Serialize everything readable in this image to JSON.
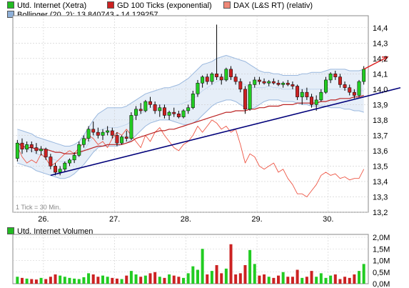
{
  "legend": {
    "price": {
      "label": "Utd. Internet (Xetra)",
      "color": "#22bb22"
    },
    "ma": {
      "label": "GD 100 Ticks (exponential)",
      "color": "#cc2222"
    },
    "dax": {
      "label": "DAX (L&S RT) (relativ)",
      "color": "#ee6655"
    },
    "boll": {
      "label": "Bollinger (20, 2): 13,840743 - 14,129257",
      "color": "#8fb0d8"
    },
    "volume": {
      "label": "Utd. Internet Volumen",
      "color": "#22bb22"
    }
  },
  "tick_note": "1 Tick = 30 Min.",
  "colors": {
    "up": "#22cc22",
    "down": "#cc2222",
    "ma": "#bb2222",
    "dax": "#ee5544",
    "band_fill": "#e6eef8",
    "band_line": "#9ab8de",
    "band_mid": "#bcd2ec",
    "trend": "#00007a",
    "arrow": "#dd2222",
    "grid": "#cccccc",
    "border": "#888888"
  },
  "chart_data": [
    {
      "type": "candlestick",
      "title": "Utd. Internet (Xetra)",
      "x": [
        "26.",
        "27.",
        "28.",
        "29.",
        "30."
      ],
      "y_ticks": [
        "13,2",
        "13,3",
        "13,4",
        "13,5",
        "13,6",
        "13,7",
        "13,8",
        "13,9",
        "14,0",
        "14,1",
        "14,2",
        "14,3",
        "14,4"
      ],
      "ylim": [
        13.2,
        14.45
      ],
      "grid": true,
      "candles": [
        [
          13.55,
          13.67,
          13.53,
          13.65
        ],
        [
          13.65,
          13.68,
          13.58,
          13.61
        ],
        [
          13.61,
          13.66,
          13.59,
          13.64
        ],
        [
          13.64,
          13.66,
          13.59,
          13.62
        ],
        [
          13.62,
          13.65,
          13.58,
          13.6
        ],
        [
          13.6,
          13.63,
          13.57,
          13.61
        ],
        [
          13.61,
          13.62,
          13.54,
          13.56
        ],
        [
          13.56,
          13.58,
          13.48,
          13.5
        ],
        [
          13.5,
          13.52,
          13.44,
          13.46
        ],
        [
          13.46,
          13.5,
          13.44,
          13.48
        ],
        [
          13.48,
          13.53,
          13.46,
          13.52
        ],
        [
          13.52,
          13.55,
          13.5,
          13.54
        ],
        [
          13.54,
          13.59,
          13.52,
          13.57
        ],
        [
          13.57,
          13.66,
          13.56,
          13.64
        ],
        [
          13.64,
          13.7,
          13.62,
          13.68
        ],
        [
          13.68,
          13.76,
          13.66,
          13.74
        ],
        [
          13.74,
          13.79,
          13.7,
          13.72
        ],
        [
          13.72,
          13.75,
          13.68,
          13.7
        ],
        [
          13.7,
          13.74,
          13.67,
          13.72
        ],
        [
          13.72,
          13.76,
          13.7,
          13.73
        ],
        [
          13.73,
          13.75,
          13.68,
          13.7
        ],
        [
          13.7,
          13.72,
          13.63,
          13.65
        ],
        [
          13.65,
          13.7,
          13.64,
          13.69
        ],
        [
          13.69,
          13.73,
          13.66,
          13.68
        ],
        [
          13.68,
          13.85,
          13.67,
          13.83
        ],
        [
          13.83,
          13.89,
          13.8,
          13.87
        ],
        [
          13.87,
          13.91,
          13.84,
          13.86
        ],
        [
          13.86,
          13.93,
          13.85,
          13.92
        ],
        [
          13.92,
          13.95,
          13.88,
          13.9
        ],
        [
          13.9,
          13.92,
          13.84,
          13.86
        ],
        [
          13.86,
          13.9,
          13.82,
          13.88
        ],
        [
          13.88,
          13.9,
          13.81,
          13.83
        ],
        [
          13.83,
          13.86,
          13.8,
          13.85
        ],
        [
          13.85,
          13.88,
          13.82,
          13.84
        ],
        [
          13.84,
          13.86,
          13.81,
          13.82
        ],
        [
          13.82,
          13.87,
          13.81,
          13.86
        ],
        [
          13.86,
          13.9,
          13.84,
          13.88
        ],
        [
          13.88,
          13.99,
          13.87,
          13.97
        ],
        [
          13.97,
          14.06,
          13.95,
          14.04
        ],
        [
          14.04,
          14.09,
          14.01,
          14.08
        ],
        [
          14.08,
          14.1,
          14.03,
          14.05
        ],
        [
          14.05,
          14.11,
          14.03,
          14.1
        ],
        [
          14.1,
          14.42,
          14.06,
          14.08
        ],
        [
          14.08,
          14.1,
          14.03,
          14.06
        ],
        [
          14.06,
          14.14,
          14.05,
          14.13
        ],
        [
          14.13,
          14.15,
          14.06,
          14.08
        ],
        [
          14.08,
          14.1,
          14.03,
          14.05
        ],
        [
          14.05,
          14.07,
          13.98,
          14.0
        ],
        [
          14.0,
          14.02,
          13.84,
          13.87
        ],
        [
          13.87,
          14.05,
          13.86,
          14.03
        ],
        [
          14.03,
          14.08,
          14.01,
          14.06
        ],
        [
          14.06,
          14.08,
          14.03,
          14.05
        ],
        [
          14.05,
          14.07,
          14.03,
          14.04
        ],
        [
          14.04,
          14.06,
          14.02,
          14.05
        ],
        [
          14.05,
          14.07,
          14.03,
          14.04
        ],
        [
          14.04,
          14.06,
          14.02,
          14.03
        ],
        [
          14.03,
          14.05,
          14.01,
          14.04
        ],
        [
          14.04,
          14.06,
          14.02,
          14.03
        ],
        [
          14.03,
          14.05,
          14.0,
          14.02
        ],
        [
          14.02,
          14.03,
          13.93,
          13.95
        ],
        [
          13.95,
          14.0,
          13.9,
          13.98
        ],
        [
          13.98,
          14.01,
          13.93,
          13.95
        ],
        [
          13.95,
          13.97,
          13.88,
          13.9
        ],
        [
          13.9,
          13.96,
          13.86,
          13.93
        ],
        [
          13.93,
          14.0,
          13.92,
          13.98
        ],
        [
          13.98,
          14.08,
          13.97,
          14.06
        ],
        [
          14.06,
          14.11,
          14.04,
          14.1
        ],
        [
          14.1,
          14.12,
          14.06,
          14.08
        ],
        [
          14.08,
          14.1,
          14.01,
          14.03
        ],
        [
          14.03,
          14.05,
          13.99,
          14.01
        ],
        [
          14.01,
          14.03,
          13.96,
          13.98
        ],
        [
          13.98,
          14.0,
          13.94,
          13.96
        ],
        [
          13.96,
          14.06,
          13.95,
          14.05
        ],
        [
          14.05,
          14.15,
          14.03,
          14.13
        ]
      ]
    },
    {
      "type": "line",
      "series": [
        {
          "name": "GD 100 Ticks (exponential)",
          "values": [
            13.65,
            13.63,
            13.62,
            13.62,
            13.61,
            13.61,
            13.61,
            13.6,
            13.59,
            13.59,
            13.58,
            13.58,
            13.58,
            13.59,
            13.6,
            13.61,
            13.62,
            13.63,
            13.63,
            13.64,
            13.64,
            13.64,
            13.64,
            13.65,
            13.66,
            13.68,
            13.69,
            13.7,
            13.71,
            13.72,
            13.73,
            13.73,
            13.74,
            13.74,
            13.75,
            13.76,
            13.77,
            13.78,
            13.79,
            13.8,
            13.81,
            13.82,
            13.83,
            13.84,
            13.85,
            13.85,
            13.86,
            13.86,
            13.86,
            13.87,
            13.87,
            13.88,
            13.88,
            13.89,
            13.89,
            13.89,
            13.9,
            13.9,
            13.9,
            13.91,
            13.91,
            13.91,
            13.91,
            13.91,
            13.92,
            13.92,
            13.93,
            13.93,
            13.94,
            13.94,
            13.94,
            13.95,
            13.95,
            13.96
          ]
        },
        {
          "name": "DAX (L&S RT) (relativ)",
          "values": [
            13.63,
            13.56,
            13.52,
            13.54,
            13.52,
            13.58,
            13.55,
            13.5,
            13.52,
            13.55,
            13.58,
            13.6,
            13.58,
            13.62,
            13.65,
            13.7,
            13.68,
            13.64,
            13.66,
            13.62,
            13.68,
            13.72,
            13.7,
            13.74,
            13.7,
            13.66,
            13.62,
            13.7,
            13.66,
            13.72,
            13.75,
            13.7,
            13.66,
            13.62,
            13.6,
            13.64,
            13.66,
            13.7,
            13.76,
            13.72,
            13.76,
            13.8,
            13.78,
            13.74,
            13.76,
            13.72,
            13.74,
            13.64,
            13.52,
            13.58,
            13.56,
            13.5,
            13.48,
            13.5,
            13.52,
            13.46,
            13.48,
            13.42,
            13.38,
            13.32,
            13.32,
            13.3,
            13.34,
            13.38,
            13.44,
            13.46,
            13.44,
            13.45,
            13.42,
            13.43,
            13.41,
            13.42,
            13.42,
            13.48
          ]
        },
        {
          "name": "Bollinger upper",
          "values": [
            13.74,
            13.73,
            13.72,
            13.71,
            13.69,
            13.68,
            13.67,
            13.66,
            13.65,
            13.64,
            13.63,
            13.63,
            13.64,
            13.66,
            13.7,
            13.75,
            13.8,
            13.84,
            13.86,
            13.88,
            13.88,
            13.88,
            13.88,
            13.89,
            13.91,
            13.93,
            13.95,
            13.97,
            13.98,
            13.99,
            14.0,
            14.01,
            14.01,
            14.02,
            14.03,
            14.05,
            14.07,
            14.1,
            14.13,
            14.16,
            14.17,
            14.18,
            14.2,
            14.21,
            14.22,
            14.21,
            14.2,
            14.19,
            14.18,
            14.16,
            14.14,
            14.12,
            14.11,
            14.11,
            14.1,
            14.1,
            14.09,
            14.09,
            14.09,
            14.09,
            14.1,
            14.1,
            14.11,
            14.11,
            14.11,
            14.12,
            14.13,
            14.13,
            14.13,
            14.13,
            14.12,
            14.12,
            14.12,
            14.13
          ]
        },
        {
          "name": "Bollinger lower",
          "values": [
            13.52,
            13.51,
            13.5,
            13.49,
            13.47,
            13.46,
            13.45,
            13.44,
            13.43,
            13.42,
            13.42,
            13.43,
            13.45,
            13.48,
            13.51,
            13.55,
            13.59,
            13.62,
            13.63,
            13.63,
            13.63,
            13.63,
            13.64,
            13.65,
            13.67,
            13.7,
            13.73,
            13.76,
            13.78,
            13.79,
            13.8,
            13.8,
            13.8,
            13.79,
            13.78,
            13.77,
            13.77,
            13.78,
            13.8,
            13.83,
            13.86,
            13.89,
            13.91,
            13.92,
            13.93,
            13.93,
            13.92,
            13.9,
            13.88,
            13.87,
            13.88,
            13.9,
            13.92,
            13.93,
            13.93,
            13.93,
            13.92,
            13.92,
            13.92,
            13.91,
            13.9,
            13.9,
            13.89,
            13.89,
            13.89,
            13.89,
            13.88,
            13.88,
            13.88,
            13.87,
            13.87,
            13.86,
            13.86,
            13.85
          ]
        },
        {
          "name": "Bollinger middle",
          "values": [
            13.63,
            13.62,
            13.61,
            13.6,
            13.58,
            13.57,
            13.56,
            13.55,
            13.54,
            13.53,
            13.53,
            13.53,
            13.55,
            13.57,
            13.6,
            13.65,
            13.69,
            13.73,
            13.74,
            13.75,
            13.75,
            13.75,
            13.76,
            13.77,
            13.79,
            13.82,
            13.84,
            13.86,
            13.88,
            13.89,
            13.9,
            13.9,
            13.9,
            13.9,
            13.9,
            13.91,
            13.92,
            13.94,
            13.96,
            13.99,
            14.01,
            14.03,
            14.05,
            14.06,
            14.07,
            14.07,
            14.06,
            14.04,
            14.03,
            14.01,
            14.01,
            14.01,
            14.01,
            14.02,
            14.01,
            14.01,
            14.0,
            14.0,
            14.0,
            14.0,
            14.0,
            14.0,
            14.0,
            14.0,
            14.0,
            14.0,
            14.0,
            14.0,
            14.0,
            14.0,
            13.99,
            13.99,
            13.99,
            13.99
          ]
        }
      ],
      "trendline": {
        "from": [
          7,
          13.44
        ],
        "to": [
          73,
          13.95
        ]
      },
      "projection_arrow": {
        "from": [
          73,
          14.13
        ],
        "to": [
          78,
          14.21
        ]
      }
    },
    {
      "type": "bar",
      "title": "Utd. Internet Volumen",
      "y_ticks": [
        "0,0M",
        "0,5M",
        "1,0M",
        "1,5M",
        "2,0M"
      ],
      "ylim": [
        0,
        2.0
      ],
      "values": [
        0.3,
        0.25,
        0.22,
        0.2,
        0.18,
        0.25,
        0.2,
        0.3,
        0.4,
        0.35,
        0.3,
        0.25,
        0.22,
        0.2,
        0.28,
        0.45,
        0.4,
        0.3,
        0.35,
        0.3,
        0.25,
        0.22,
        0.2,
        0.35,
        0.55,
        0.4,
        0.3,
        0.35,
        0.45,
        0.5,
        0.3,
        0.25,
        0.4,
        0.35,
        0.3,
        0.25,
        0.45,
        0.75,
        0.6,
        1.5,
        0.4,
        0.55,
        0.8,
        0.45,
        0.65,
        1.7,
        0.4,
        0.45,
        0.8,
        1.45,
        0.85,
        0.35,
        0.4,
        0.3,
        0.25,
        0.35,
        0.5,
        0.3,
        0.3,
        0.6,
        0.25,
        0.3,
        0.55,
        0.3,
        0.45,
        0.25,
        0.35,
        0.4,
        0.2,
        0.3,
        0.25,
        0.4,
        0.55,
        0.85
      ]
    }
  ]
}
